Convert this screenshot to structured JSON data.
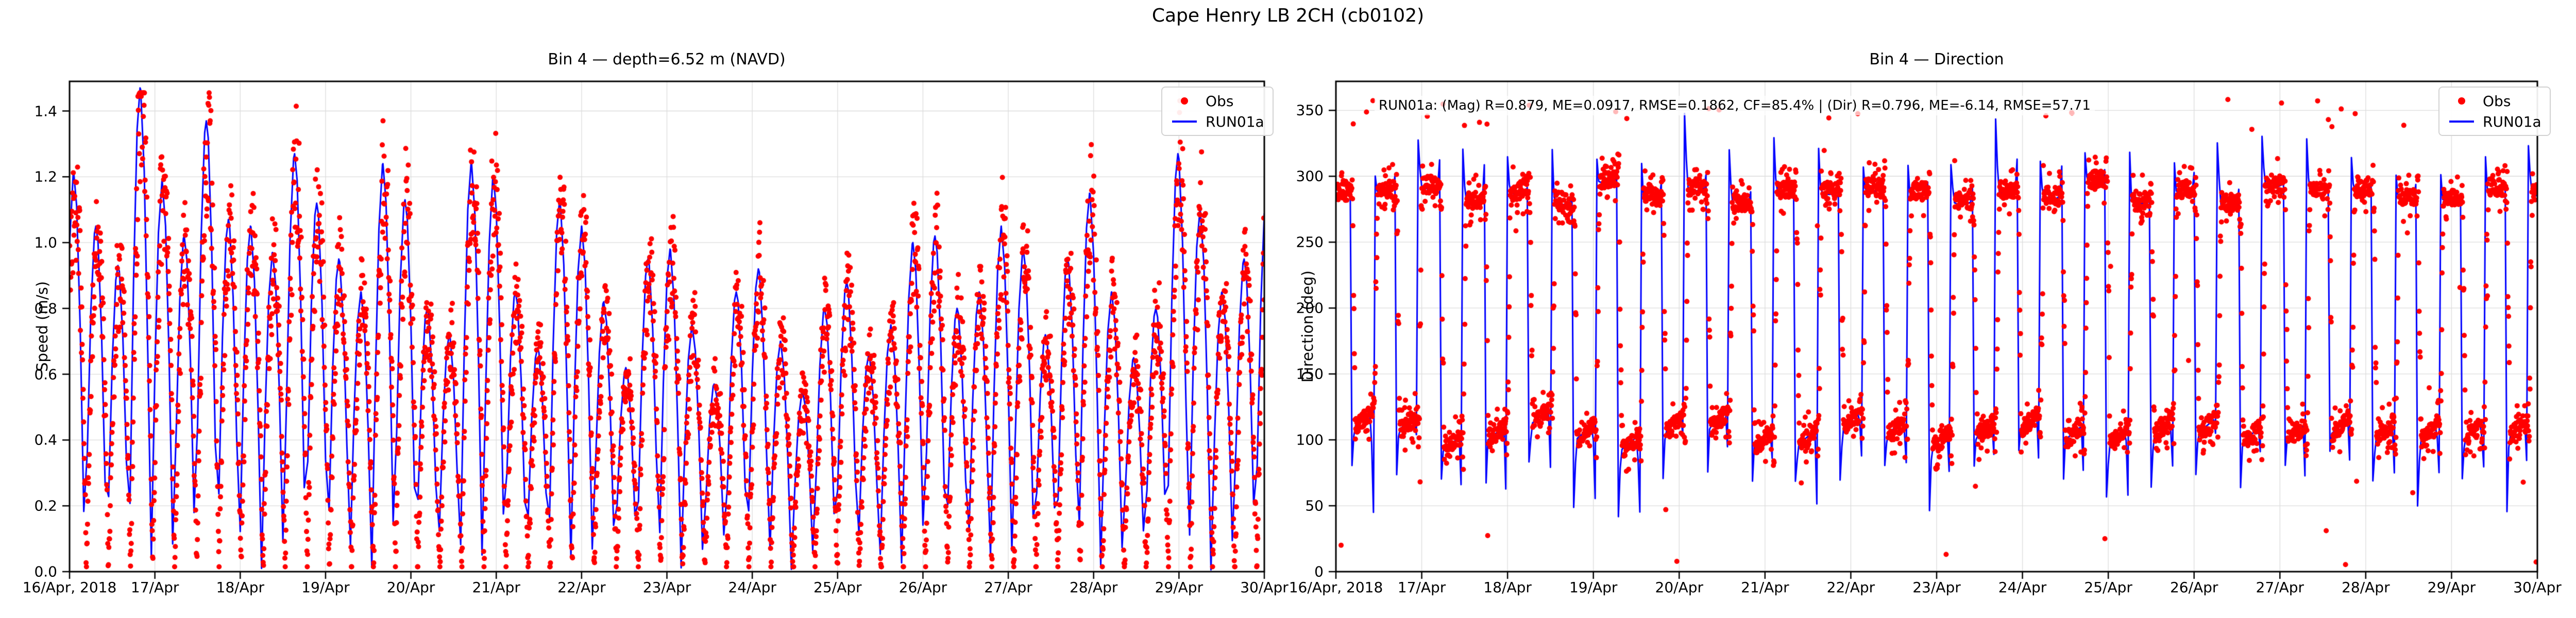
{
  "figure": {
    "title": "Cape Henry LB 2CH (cb0102)"
  },
  "colors": {
    "obs": "#ff0000",
    "model": "#0000ff",
    "grid": "#dcdcdc",
    "spine": "#000000"
  },
  "legend": {
    "obs_label": "Obs",
    "model_label": "RUN01a"
  },
  "chart_data": [
    {
      "type": "line+scatter",
      "title": "Bin 4 — depth=6.52 m (NAVD)",
      "ylabel": "Speed (m/s)",
      "xlabel": "",
      "legend": [
        "Obs",
        "RUN01a"
      ],
      "legend_position": "upper right",
      "grid": true,
      "x_range": {
        "start_label": "16/Apr, 2018",
        "end_label": "30/Apr",
        "days": 14,
        "hours": 336
      },
      "x_tick_labels": [
        "16/Apr, 2018",
        "17/Apr",
        "18/Apr",
        "19/Apr",
        "20/Apr",
        "21/Apr",
        "22/Apr",
        "23/Apr",
        "24/Apr",
        "25/Apr",
        "26/Apr",
        "27/Apr",
        "28/Apr",
        "29/Apr",
        "30/Apr"
      ],
      "y_ticks": [
        0.0,
        0.2,
        0.4,
        0.6,
        0.8,
        1.0,
        1.2,
        1.4
      ],
      "y_tick_labels": [
        "0.0",
        "0.2",
        "0.4",
        "0.6",
        "0.8",
        "1.0",
        "1.2",
        "1.4"
      ],
      "ylim": [
        0,
        1.49
      ],
      "series_model": {
        "name": "RUN01a",
        "kind": "semidiurnal-tidal-speed",
        "first_slack_hour": 4.3,
        "half_period_hours": 6.21,
        "arc_peak_speeds_ms": [
          1.21,
          1.05,
          0.93,
          1.47,
          1.19,
          1.02,
          1.37,
          1.07,
          1.05,
          0.97,
          1.27,
          1.12,
          0.95,
          0.85,
          1.24,
          1.13,
          0.8,
          0.72,
          1.25,
          1.2,
          0.85,
          0.68,
          1.13,
          1.05,
          0.82,
          0.62,
          0.95,
          0.98,
          0.75,
          0.57,
          0.85,
          0.92,
          0.7,
          0.55,
          0.8,
          0.88,
          0.66,
          0.75,
          1.0,
          1.02,
          0.8,
          0.85,
          1.05,
          0.98,
          0.72,
          0.95,
          1.15,
          0.85,
          0.65,
          0.8,
          1.27,
          1.1,
          0.85,
          0.95,
          1.13
        ]
      },
      "series_obs": {
        "name": "Obs",
        "kind": "scatter",
        "approx_value_range_ms": [
          0.02,
          1.45
        ]
      }
    },
    {
      "type": "line+scatter",
      "title": "Bin 4 — Direction",
      "ylabel": "Direction (deg)",
      "xlabel": "",
      "legend": [
        "Obs",
        "RUN01a"
      ],
      "legend_position": "upper right",
      "grid": true,
      "annotation": "RUN01a: (Mag) R=0.879, ME=0.0917, RMSE=0.1862, CF=85.4% | (Dir) R=0.796, ME=-6.14, RMSE=57.71",
      "stats": {
        "model": "RUN01a",
        "magnitude": {
          "R": 0.879,
          "ME": 0.0917,
          "RMSE": 0.1862,
          "CF_pct": 85.4
        },
        "direction": {
          "R": 0.796,
          "ME": -6.14,
          "RMSE": 57.71
        }
      },
      "x_range": {
        "start_label": "16/Apr, 2018",
        "end_label": "30/Apr",
        "days": 14,
        "hours": 336
      },
      "x_tick_labels": [
        "16/Apr, 2018",
        "17/Apr",
        "18/Apr",
        "19/Apr",
        "20/Apr",
        "21/Apr",
        "22/Apr",
        "23/Apr",
        "24/Apr",
        "25/Apr",
        "26/Apr",
        "27/Apr",
        "28/Apr",
        "29/Apr",
        "30/Apr"
      ],
      "y_ticks": [
        0,
        50,
        100,
        150,
        200,
        250,
        300,
        350
      ],
      "y_tick_labels": [
        "0",
        "50",
        "100",
        "150",
        "200",
        "250",
        "300",
        "350"
      ],
      "ylim": [
        0,
        372
      ],
      "series_model": {
        "name": "RUN01a",
        "kind": "alternating-flood-ebb-direction",
        "flood_direction_deg": 292,
        "ebb_direction_deg": 110,
        "first_slack_hour": 4.3,
        "half_period_hours": 6.21
      },
      "series_obs": {
        "name": "Obs",
        "kind": "scatter",
        "approx_value_range_deg": [
          0,
          360
        ]
      }
    }
  ]
}
